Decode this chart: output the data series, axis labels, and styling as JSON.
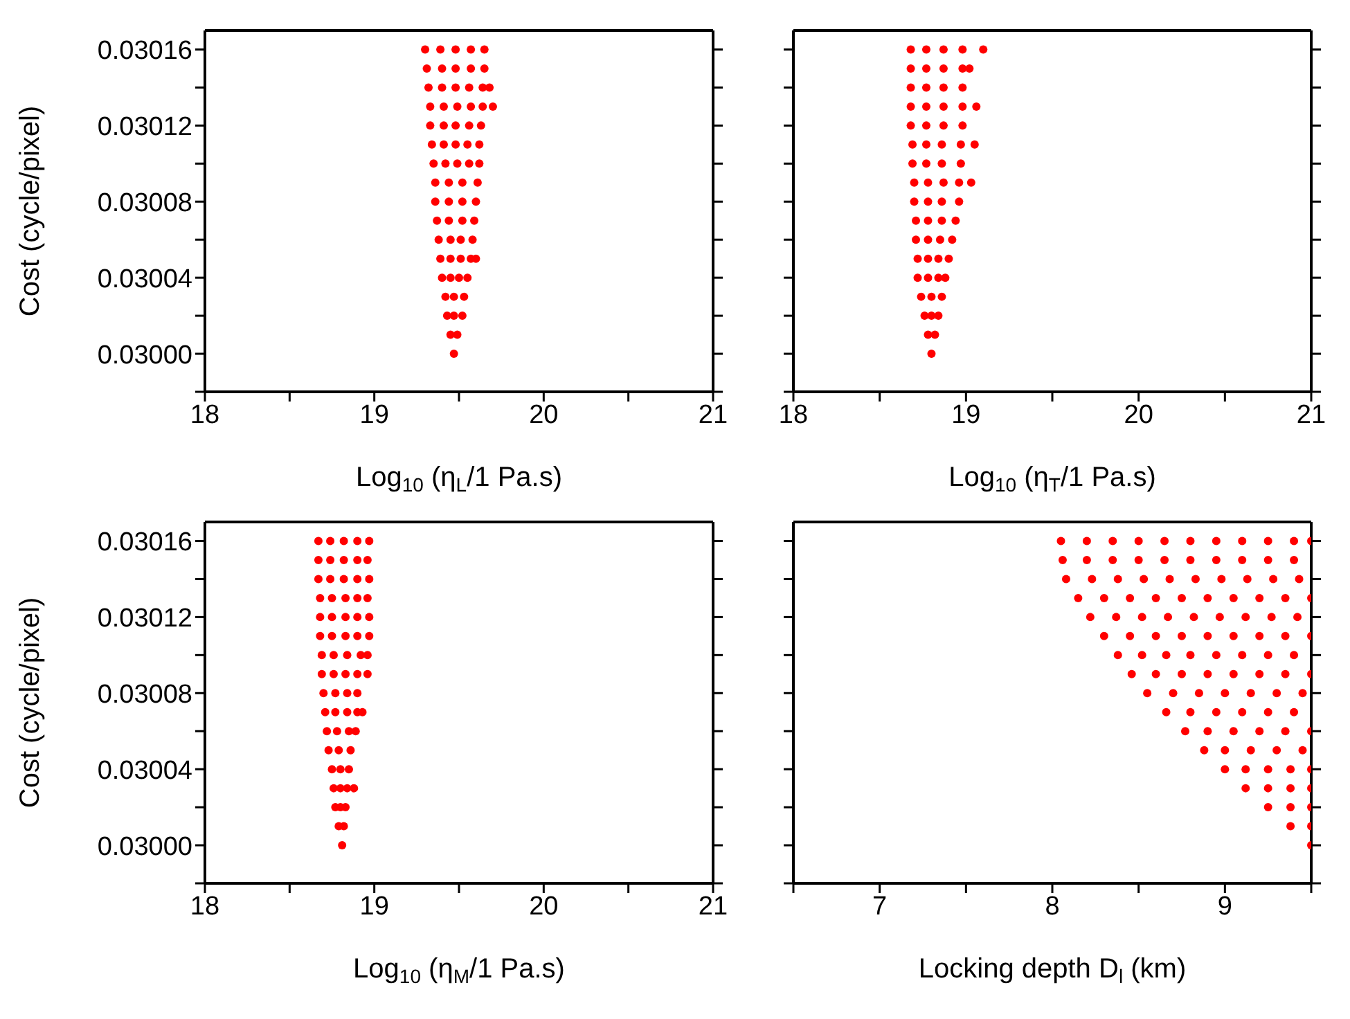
{
  "chart_data": [
    {
      "type": "scatter",
      "xlabel": "Log$_{10}$ (η$_{L}$/1 Pa.s)",
      "ylabel": "Cost (cycle/pixel)",
      "marker": "circle",
      "xlim": [
        18,
        21
      ],
      "xticks": [
        18,
        {
          "value": 18.5,
          "label": null
        },
        19,
        {
          "value": 19.5,
          "label": null
        },
        20,
        {
          "value": 20.5,
          "label": null
        },
        21
      ],
      "ylim": [
        0.02998,
        0.03017
      ],
      "yticks": [
        {
          "value": 0.02998,
          "label": null
        },
        {
          "value": 0.03,
          "label": "0.03000"
        },
        {
          "value": 0.03002,
          "label": null
        },
        0.03004,
        {
          "value": 0.03006,
          "label": null
        },
        0.03008,
        {
          "value": 0.0301,
          "label": null
        },
        0.03012,
        {
          "value": 0.03014,
          "label": null
        },
        0.03016
      ],
      "series": [
        {
          "color": "#ff0000",
          "x": [
            19.47,
            19.45,
            19.49,
            19.43,
            19.47,
            19.52,
            19.42,
            19.47,
            19.53,
            19.4,
            19.45,
            19.5,
            19.55,
            19.39,
            19.45,
            19.51,
            19.57,
            19.6,
            19.38,
            19.45,
            19.51,
            19.58,
            19.37,
            19.44,
            19.52,
            19.59,
            19.36,
            19.44,
            19.52,
            19.6,
            19.36,
            19.44,
            19.52,
            19.61,
            19.35,
            19.42,
            19.49,
            19.56,
            19.62,
            19.34,
            19.41,
            19.48,
            19.55,
            19.62,
            19.33,
            19.41,
            19.48,
            19.56,
            19.63,
            19.33,
            19.41,
            19.49,
            19.57,
            19.64,
            19.7,
            19.32,
            19.4,
            19.48,
            19.56,
            19.64,
            19.68,
            19.31,
            19.4,
            19.48,
            19.57,
            19.65,
            19.3,
            19.39,
            19.48,
            19.57,
            19.65
          ],
          "values": [
            0.03,
            0.03001,
            0.03001,
            0.03002,
            0.03002,
            0.03002,
            0.03003,
            0.03003,
            0.03003,
            0.03004,
            0.03004,
            0.03004,
            0.03004,
            0.03005,
            0.03005,
            0.03005,
            0.03005,
            0.03005,
            0.03006,
            0.03006,
            0.03006,
            0.03006,
            0.03007,
            0.03007,
            0.03007,
            0.03007,
            0.03008,
            0.03008,
            0.03008,
            0.03008,
            0.03009,
            0.03009,
            0.03009,
            0.03009,
            0.0301,
            0.0301,
            0.0301,
            0.0301,
            0.0301,
            0.03011,
            0.03011,
            0.03011,
            0.03011,
            0.03011,
            0.03012,
            0.03012,
            0.03012,
            0.03012,
            0.03012,
            0.03013,
            0.03013,
            0.03013,
            0.03013,
            0.03013,
            0.03013,
            0.03014,
            0.03014,
            0.03014,
            0.03014,
            0.03014,
            0.03014,
            0.03015,
            0.03015,
            0.03015,
            0.03015,
            0.03015,
            0.03016,
            0.03016,
            0.03016,
            0.03016,
            0.03016
          ]
        }
      ]
    },
    {
      "type": "scatter",
      "xlabel": "Log$_{10}$ (η$_{T}$/1 Pa.s)",
      "marker": "circle",
      "tick_labels": "x",
      "xlim": [
        18,
        21
      ],
      "xticks": [
        18,
        {
          "value": 18.5,
          "label": null
        },
        19,
        {
          "value": 19.5,
          "label": null
        },
        20,
        {
          "value": 20.5,
          "label": null
        },
        21
      ],
      "ylim": [
        0.02998,
        0.03017
      ],
      "yticks": [
        0.02998,
        0.03,
        0.03002,
        0.03004,
        0.03006,
        0.03008,
        0.0301,
        0.03012,
        0.03014,
        0.03016
      ],
      "series": [
        {
          "color": "#ff0000",
          "x": [
            18.8,
            18.78,
            18.82,
            18.76,
            18.8,
            18.84,
            18.74,
            18.8,
            18.86,
            18.72,
            18.78,
            18.84,
            18.88,
            18.72,
            18.78,
            18.84,
            18.9,
            18.71,
            18.78,
            18.85,
            18.92,
            18.71,
            18.78,
            18.86,
            18.94,
            18.7,
            18.78,
            18.86,
            18.96,
            18.7,
            18.78,
            18.87,
            18.96,
            19.03,
            18.69,
            18.77,
            18.86,
            18.97,
            18.69,
            18.77,
            18.86,
            18.97,
            19.05,
            18.68,
            18.77,
            18.87,
            18.98,
            18.68,
            18.77,
            18.87,
            18.98,
            19.06,
            18.68,
            18.77,
            18.87,
            18.98,
            18.68,
            18.77,
            18.87,
            18.98,
            19.02,
            18.68,
            18.77,
            18.87,
            18.98,
            19.1
          ],
          "values": [
            0.03,
            0.03001,
            0.03001,
            0.03002,
            0.03002,
            0.03002,
            0.03003,
            0.03003,
            0.03003,
            0.03004,
            0.03004,
            0.03004,
            0.03004,
            0.03005,
            0.03005,
            0.03005,
            0.03005,
            0.03006,
            0.03006,
            0.03006,
            0.03006,
            0.03007,
            0.03007,
            0.03007,
            0.03007,
            0.03008,
            0.03008,
            0.03008,
            0.03008,
            0.03009,
            0.03009,
            0.03009,
            0.03009,
            0.03009,
            0.0301,
            0.0301,
            0.0301,
            0.0301,
            0.03011,
            0.03011,
            0.03011,
            0.03011,
            0.03011,
            0.03012,
            0.03012,
            0.03012,
            0.03012,
            0.03013,
            0.03013,
            0.03013,
            0.03013,
            0.03013,
            0.03014,
            0.03014,
            0.03014,
            0.03014,
            0.03015,
            0.03015,
            0.03015,
            0.03015,
            0.03015,
            0.03016,
            0.03016,
            0.03016,
            0.03016,
            0.03016
          ]
        }
      ]
    },
    {
      "type": "scatter",
      "xlabel": "Log$_{10}$ (η$_{M}$/1 Pa.s)",
      "ylabel": "Cost (cycle/pixel)",
      "marker": "circle",
      "xlim": [
        18,
        21
      ],
      "xticks": [
        18,
        {
          "value": 18.5,
          "label": null
        },
        19,
        {
          "value": 19.5,
          "label": null
        },
        20,
        {
          "value": 20.5,
          "label": null
        },
        21
      ],
      "ylim": [
        0.02998,
        0.03017
      ],
      "yticks": [
        {
          "value": 0.02998,
          "label": null
        },
        {
          "value": 0.03,
          "label": "0.03000"
        },
        {
          "value": 0.03002,
          "label": null
        },
        0.03004,
        {
          "value": 0.03006,
          "label": null
        },
        0.03008,
        {
          "value": 0.0301,
          "label": null
        },
        0.03012,
        {
          "value": 0.03014,
          "label": null
        },
        0.03016
      ],
      "series": [
        {
          "color": "#ff0000",
          "x": [
            18.81,
            18.79,
            18.82,
            18.77,
            18.8,
            18.83,
            18.76,
            18.8,
            18.84,
            18.88,
            18.75,
            18.8,
            18.85,
            18.73,
            18.79,
            18.86,
            18.72,
            18.78,
            18.85,
            18.89,
            18.71,
            18.77,
            18.84,
            18.9,
            18.93,
            18.7,
            18.77,
            18.84,
            18.9,
            18.69,
            18.76,
            18.83,
            18.9,
            18.96,
            18.69,
            18.76,
            18.84,
            18.92,
            18.96,
            18.68,
            18.75,
            18.83,
            18.9,
            18.97,
            18.68,
            18.75,
            18.83,
            18.9,
            18.97,
            18.68,
            18.75,
            18.83,
            18.9,
            18.96,
            18.67,
            18.74,
            18.82,
            18.9,
            18.97,
            18.67,
            18.74,
            18.82,
            18.9,
            18.96,
            18.67,
            18.74,
            18.82,
            18.9,
            18.97
          ],
          "values": [
            0.03,
            0.03001,
            0.03001,
            0.03002,
            0.03002,
            0.03002,
            0.03003,
            0.03003,
            0.03003,
            0.03003,
            0.03004,
            0.03004,
            0.03004,
            0.03005,
            0.03005,
            0.03005,
            0.03006,
            0.03006,
            0.03006,
            0.03006,
            0.03007,
            0.03007,
            0.03007,
            0.03007,
            0.03007,
            0.03008,
            0.03008,
            0.03008,
            0.03008,
            0.03009,
            0.03009,
            0.03009,
            0.03009,
            0.03009,
            0.0301,
            0.0301,
            0.0301,
            0.0301,
            0.0301,
            0.03011,
            0.03011,
            0.03011,
            0.03011,
            0.03011,
            0.03012,
            0.03012,
            0.03012,
            0.03012,
            0.03012,
            0.03013,
            0.03013,
            0.03013,
            0.03013,
            0.03013,
            0.03014,
            0.03014,
            0.03014,
            0.03014,
            0.03014,
            0.03015,
            0.03015,
            0.03015,
            0.03015,
            0.03015,
            0.03016,
            0.03016,
            0.03016,
            0.03016,
            0.03016
          ]
        }
      ]
    },
    {
      "type": "scatter",
      "xlabel": "Locking depth D$_{l}$ (km)",
      "marker": "circle",
      "tick_labels": "x",
      "xlim": [
        6.5,
        9.5
      ],
      "xticks": [
        {
          "value": 6.5,
          "label": null
        },
        7,
        {
          "value": 7.5,
          "label": null
        },
        8,
        {
          "value": 8.5,
          "label": null
        },
        9,
        {
          "value": 9.5,
          "label": null
        }
      ],
      "ylim": [
        0.02998,
        0.03017
      ],
      "yticks": [
        0.02998,
        0.03,
        0.03002,
        0.03004,
        0.03006,
        0.03008,
        0.0301,
        0.03012,
        0.03014,
        0.03016
      ],
      "series": [
        {
          "color": "#ff0000",
          "x": [
            9.5,
            9.38,
            9.5,
            9.25,
            9.38,
            9.5,
            9.12,
            9.25,
            9.38,
            9.5,
            9.0,
            9.12,
            9.25,
            9.38,
            9.5,
            8.88,
            9.0,
            9.15,
            9.3,
            9.45,
            8.77,
            8.9,
            9.05,
            9.2,
            9.35,
            9.5,
            8.66,
            8.8,
            8.95,
            9.1,
            9.25,
            9.4,
            8.55,
            8.7,
            8.85,
            9.0,
            9.15,
            9.3,
            9.45,
            8.46,
            8.6,
            8.75,
            8.9,
            9.05,
            9.2,
            9.35,
            9.5,
            8.38,
            8.52,
            8.66,
            8.8,
            8.95,
            9.1,
            9.25,
            9.4,
            8.3,
            8.45,
            8.6,
            8.75,
            8.9,
            9.05,
            9.2,
            9.35,
            9.5,
            8.22,
            8.37,
            8.52,
            8.67,
            8.82,
            8.97,
            9.12,
            9.27,
            9.42,
            8.15,
            8.3,
            8.45,
            8.6,
            8.75,
            8.9,
            9.05,
            9.2,
            9.35,
            9.5,
            8.08,
            8.23,
            8.38,
            8.53,
            8.68,
            8.83,
            8.98,
            9.13,
            9.28,
            9.43,
            8.06,
            8.2,
            8.35,
            8.5,
            8.65,
            8.8,
            8.95,
            9.1,
            9.25,
            9.4,
            8.05,
            8.2,
            8.35,
            8.5,
            8.65,
            8.8,
            8.95,
            9.1,
            9.25,
            9.4,
            9.5
          ],
          "values": [
            0.03,
            0.03001,
            0.03001,
            0.03002,
            0.03002,
            0.03002,
            0.03003,
            0.03003,
            0.03003,
            0.03003,
            0.03004,
            0.03004,
            0.03004,
            0.03004,
            0.03004,
            0.03005,
            0.03005,
            0.03005,
            0.03005,
            0.03005,
            0.03006,
            0.03006,
            0.03006,
            0.03006,
            0.03006,
            0.03006,
            0.03007,
            0.03007,
            0.03007,
            0.03007,
            0.03007,
            0.03007,
            0.03008,
            0.03008,
            0.03008,
            0.03008,
            0.03008,
            0.03008,
            0.03008,
            0.03009,
            0.03009,
            0.03009,
            0.03009,
            0.03009,
            0.03009,
            0.03009,
            0.03009,
            0.0301,
            0.0301,
            0.0301,
            0.0301,
            0.0301,
            0.0301,
            0.0301,
            0.0301,
            0.03011,
            0.03011,
            0.03011,
            0.03011,
            0.03011,
            0.03011,
            0.03011,
            0.03011,
            0.03011,
            0.03012,
            0.03012,
            0.03012,
            0.03012,
            0.03012,
            0.03012,
            0.03012,
            0.03012,
            0.03012,
            0.03013,
            0.03013,
            0.03013,
            0.03013,
            0.03013,
            0.03013,
            0.03013,
            0.03013,
            0.03013,
            0.03013,
            0.03014,
            0.03014,
            0.03014,
            0.03014,
            0.03014,
            0.03014,
            0.03014,
            0.03014,
            0.03014,
            0.03014,
            0.03015,
            0.03015,
            0.03015,
            0.03015,
            0.03015,
            0.03015,
            0.03015,
            0.03015,
            0.03015,
            0.03015,
            0.03016,
            0.03016,
            0.03016,
            0.03016,
            0.03016,
            0.03016,
            0.03016,
            0.03016,
            0.03016,
            0.03016,
            0.03016
          ]
        }
      ]
    }
  ]
}
